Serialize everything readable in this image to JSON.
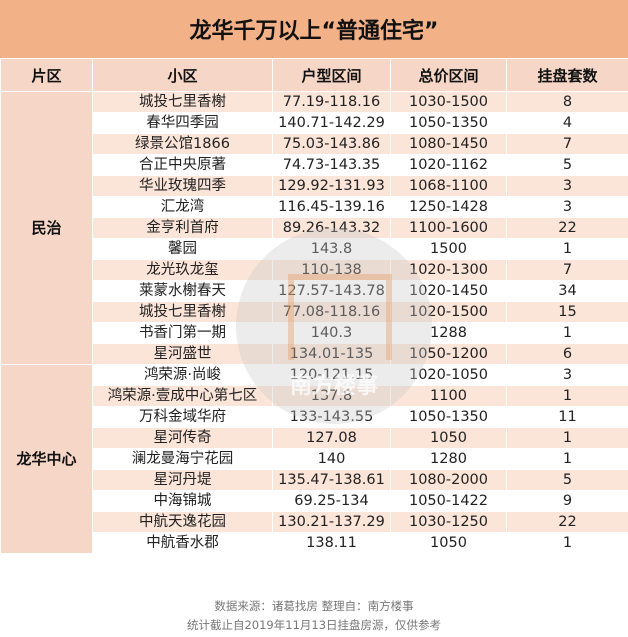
{
  "title": "龙华千万以上“普通住宅”",
  "headers": [
    "片区",
    "小区",
    "户型区间",
    "总价区间",
    "挂盘套数"
  ],
  "groups": [
    {
      "district": "民治",
      "rows": [
        [
          "城投七里香榭",
          "77.19-118.16",
          "1030-1500",
          "8"
        ],
        [
          "春华四季园",
          "140.71-142.29",
          "1050-1350",
          "4"
        ],
        [
          "绿景公馆1866",
          "75.03-143.86",
          "1080-1450",
          "7"
        ],
        [
          "合正中央原著",
          "74.73-143.35",
          "1020-1162",
          "5"
        ],
        [
          "华业玫瑰四季",
          "129.92-131.93",
          "1068-1100",
          "3"
        ],
        [
          "汇龙湾",
          "116.45-139.16",
          "1250-1428",
          "3"
        ],
        [
          "金亨利首府",
          "89.26-143.32",
          "1100-1600",
          "22"
        ],
        [
          "馨园",
          "143.8",
          "1500",
          "1"
        ],
        [
          "龙光玖龙玺",
          "110-138",
          "1020-1300",
          "7"
        ],
        [
          "莱蒙水榭春天",
          "127.57-143.78",
          "1020-1450",
          "34"
        ],
        [
          "城投七里香榭",
          "77.08-118.16",
          "1020-1500",
          "15"
        ],
        [
          "书香门第一期",
          "140.3",
          "1288",
          "1"
        ],
        [
          "星河盛世",
          "134.01-135",
          "1050-1200",
          "6"
        ]
      ]
    },
    {
      "district": "龙华中心",
      "rows": [
        [
          "鸿荣源·尚峻",
          "120-121.15",
          "1020-1050",
          "3"
        ],
        [
          "鸿荣源·壹成中心第七区",
          "137.8",
          "1100",
          "1"
        ],
        [
          "万科金域华府",
          "133-143.55",
          "1050-1350",
          "11"
        ],
        [
          "星河传奇",
          "127.08",
          "1050",
          "1"
        ],
        [
          "澜龙曼海宁花园",
          "140",
          "1280",
          "1"
        ],
        [
          "星河丹堤",
          "135.47-138.61",
          "1080-2000",
          "5"
        ],
        [
          "中海锦城",
          "69.25-134",
          "1050-1422",
          "9"
        ],
        [
          "中航天逸花园",
          "130.21-137.29",
          "1030-1250",
          "22"
        ],
        [
          "中航香水郡",
          "138.11",
          "1050",
          "1"
        ]
      ]
    }
  ],
  "watermark": "南方楼事",
  "footer": {
    "source": "数据来源：诸葛找房  整理自：南方楼事",
    "note": "统计截止自2019年11月13日挂盘房源，仅供参考"
  },
  "colors": {
    "title_bg": "#f3b187",
    "header_bg": "#f6d7c7",
    "row_odd": "#fbe4d8",
    "row_even": "#ffffff"
  }
}
